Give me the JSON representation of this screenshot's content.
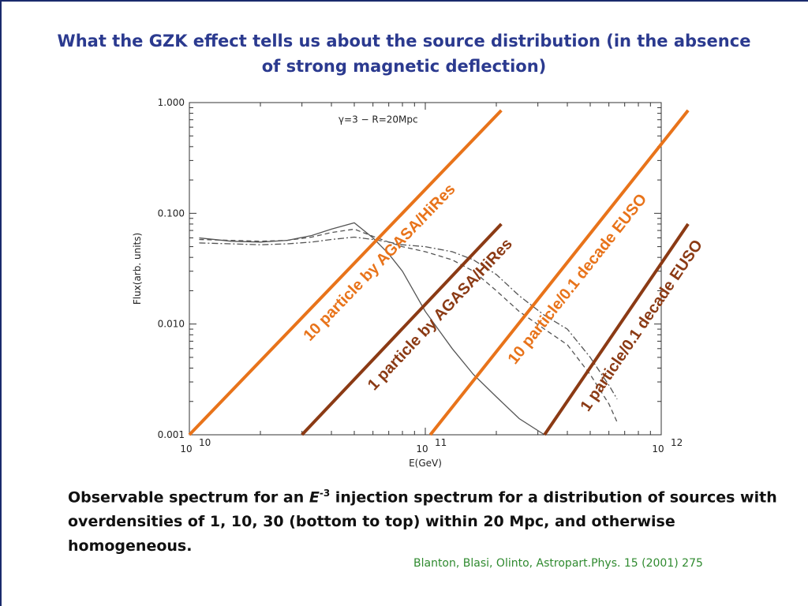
{
  "slide": {
    "title": "What the GZK effect tells us about the source distribution (in the absence of strong magnetic deflection)",
    "caption_part1": "Observable spectrum for an ",
    "caption_emph": "E",
    "caption_sup": "-3",
    "caption_part2": " injection spectrum for a distribution of sources with overdensities of 1, 10, 30 (bottom to top) within 20 Mpc, and otherwise homogeneous.",
    "reference": "Blanton, Blasi, Olinto, Astropart.Phys. 15 (2001) 275"
  },
  "chart_data": {
    "type": "line",
    "xscale": "log",
    "yscale": "log",
    "xlim": [
      10000000000.0,
      1000000000000.0
    ],
    "ylim": [
      0.001,
      1.0
    ],
    "xlabel": "E(GeV)",
    "ylabel": "Flux(arb. units)",
    "x_tick_labels": [
      {
        "value": 10000000000.0,
        "base": "10",
        "exp": "10"
      },
      {
        "value": 100000000000.0,
        "base": "10",
        "exp": "11"
      },
      {
        "value": 1000000000000.0,
        "base": "10",
        "exp": "12"
      }
    ],
    "y_tick_labels": [
      {
        "value": 1.0,
        "label": "1.000"
      },
      {
        "value": 0.1,
        "label": "0.100"
      },
      {
        "value": 0.01,
        "label": "0.010"
      },
      {
        "value": 0.001,
        "label": "0.001"
      }
    ],
    "inset_label": "γ=3 − R=20Mpc",
    "series": [
      {
        "style": "solid",
        "color": "#555555",
        "x": [
          11000000000.0,
          15000000000.0,
          20000000000.0,
          26000000000.0,
          33000000000.0,
          40000000000.0,
          50000000000.0,
          60000000000.0,
          70000000000.0,
          80000000000.0,
          100000000000.0,
          130000000000.0,
          160000000000.0,
          200000000000.0,
          250000000000.0,
          320000000000.0
        ],
        "y": [
          0.06,
          0.056,
          0.055,
          0.057,
          0.063,
          0.072,
          0.082,
          0.06,
          0.043,
          0.03,
          0.013,
          0.006,
          0.0035,
          0.0022,
          0.0014,
          0.001
        ]
      },
      {
        "style": "dashed",
        "color": "#555555",
        "x": [
          11000000000.0,
          15000000000.0,
          20000000000.0,
          26000000000.0,
          33000000000.0,
          40000000000.0,
          50000000000.0,
          60000000000.0,
          70000000000.0,
          80000000000.0,
          100000000000.0,
          130000000000.0,
          160000000000.0,
          200000000000.0,
          250000000000.0,
          320000000000.0,
          400000000000.0,
          500000000000.0,
          600000000000.0,
          650000000000.0
        ],
        "y": [
          0.058,
          0.057,
          0.056,
          0.057,
          0.061,
          0.067,
          0.072,
          0.062,
          0.055,
          0.05,
          0.045,
          0.038,
          0.03,
          0.02,
          0.013,
          0.009,
          0.0065,
          0.0035,
          0.0019,
          0.0013
        ]
      },
      {
        "style": "dashdot",
        "color": "#555555",
        "x": [
          11000000000.0,
          15000000000.0,
          20000000000.0,
          26000000000.0,
          33000000000.0,
          40000000000.0,
          50000000000.0,
          60000000000.0,
          70000000000.0,
          80000000000.0,
          100000000000.0,
          130000000000.0,
          160000000000.0,
          200000000000.0,
          250000000000.0,
          320000000000.0,
          400000000000.0,
          500000000000.0,
          600000000000.0,
          650000000000.0
        ],
        "y": [
          0.054,
          0.053,
          0.052,
          0.053,
          0.055,
          0.058,
          0.061,
          0.058,
          0.055,
          0.052,
          0.05,
          0.045,
          0.038,
          0.028,
          0.018,
          0.012,
          0.009,
          0.005,
          0.0028,
          0.0021
        ]
      }
    ],
    "annotation_lines": [
      {
        "label": "10 particle by AGASA/HiRes",
        "color": "#e8731a",
        "x": [
          10000000000.0,
          210000000000.0
        ],
        "y": [
          0.001,
          0.85
        ]
      },
      {
        "label": "1 particle by AGASA/HiRes",
        "color": "#8b3a14",
        "x": [
          30000000000.0,
          210000000000.0
        ],
        "y": [
          0.001,
          0.08
        ]
      },
      {
        "label": "10 particle/0.1 decade  EUSO",
        "color": "#e8731a",
        "x": [
          105000000000.0,
          1300000000000.0
        ],
        "y": [
          0.001,
          0.85
        ]
      },
      {
        "label": "1 particle/0.1 decade EUSO",
        "color": "#8b3a14",
        "x": [
          320000000000.0,
          1300000000000.0
        ],
        "y": [
          0.001,
          0.08
        ]
      }
    ]
  }
}
